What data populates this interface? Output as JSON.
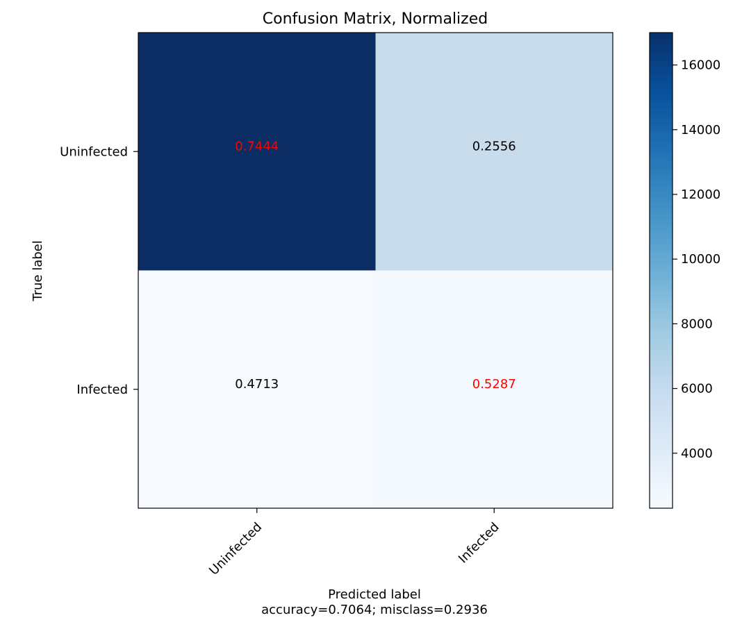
{
  "chart_data": {
    "type": "heatmap",
    "title": "Confusion Matrix, Normalized",
    "xlabel": "Predicted label",
    "ylabel": "True label",
    "subtitle": "accuracy=0.7064; misclass=0.2936",
    "x_categories": [
      "Uninfected",
      "Infected"
    ],
    "y_categories": [
      "Uninfected",
      "Infected"
    ],
    "values": [
      [
        0.7444,
        0.2556
      ],
      [
        0.4713,
        0.5287
      ]
    ],
    "value_labels": [
      [
        "0.7444",
        "0.2556"
      ],
      [
        "0.4713",
        "0.5287"
      ]
    ],
    "cell_colors": [
      [
        "#0c2d63",
        "#c9dcec"
      ],
      [
        "#f6faff",
        "#f4f9fe"
      ]
    ],
    "label_colors": [
      [
        "#ff0000",
        "#000000"
      ],
      [
        "#000000",
        "#ff0000"
      ]
    ],
    "colorbar": {
      "range": [
        2300,
        17000
      ],
      "ticks": [
        4000,
        6000,
        8000,
        10000,
        12000,
        14000,
        16000
      ],
      "tick_labels": [
        "4000",
        "6000",
        "8000",
        "10000",
        "12000",
        "14000",
        "16000"
      ],
      "colormap": "Blues",
      "stops": [
        "#f7fbff",
        "#deebf7",
        "#c6dbef",
        "#9ecae1",
        "#6baed6",
        "#4292c6",
        "#2171b5",
        "#08519c",
        "#08306b"
      ]
    },
    "grid": false
  }
}
